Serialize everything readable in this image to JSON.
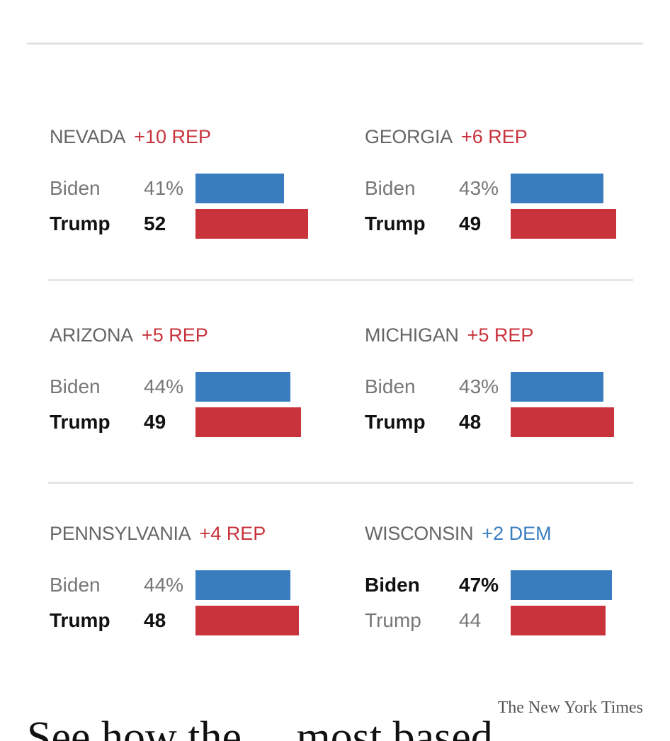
{
  "chart_data": {
    "type": "bar",
    "series_names": [
      "Biden",
      "Trump"
    ],
    "colors": {
      "Biden": "#3a7dbf",
      "Trump": "#c8333c",
      "rep_margin": "#c8333c",
      "dem_margin": "#3a7dbf"
    },
    "percent_suffix": "%",
    "states": [
      {
        "name": "NEVADA",
        "margin": "+10 REP",
        "margin_party": "rep",
        "winner": "Trump",
        "rows": [
          {
            "name": "Biden",
            "label": "41%",
            "value": 41
          },
          {
            "name": "Trump",
            "label": "52",
            "value": 52
          }
        ]
      },
      {
        "name": "GEORGIA",
        "margin": "+6 REP",
        "margin_party": "rep",
        "winner": "Trump",
        "rows": [
          {
            "name": "Biden",
            "label": "43%",
            "value": 43
          },
          {
            "name": "Trump",
            "label": "49",
            "value": 49
          }
        ]
      },
      {
        "name": "ARIZONA",
        "margin": "+5 REP",
        "margin_party": "rep",
        "winner": "Trump",
        "rows": [
          {
            "name": "Biden",
            "label": "44%",
            "value": 44
          },
          {
            "name": "Trump",
            "label": "49",
            "value": 49
          }
        ]
      },
      {
        "name": "MICHIGAN",
        "margin": "+5 REP",
        "margin_party": "rep",
        "winner": "Trump",
        "rows": [
          {
            "name": "Biden",
            "label": "43%",
            "value": 43
          },
          {
            "name": "Trump",
            "label": "48",
            "value": 48
          }
        ]
      },
      {
        "name": "PENNSYLVANIA",
        "margin": "+4 REP",
        "margin_party": "rep",
        "winner": "Trump",
        "rows": [
          {
            "name": "Biden",
            "label": "44%",
            "value": 44
          },
          {
            "name": "Trump",
            "label": "48",
            "value": 48
          }
        ]
      },
      {
        "name": "WISCONSIN",
        "margin": "+2 DEM",
        "margin_party": "dem",
        "winner": "Biden",
        "rows": [
          {
            "name": "Biden",
            "label": "47%",
            "value": 47
          },
          {
            "name": "Trump",
            "label": "44",
            "value": 44
          }
        ]
      }
    ]
  },
  "credit": "The New York Times",
  "bottom_text": "See how the ... most based"
}
